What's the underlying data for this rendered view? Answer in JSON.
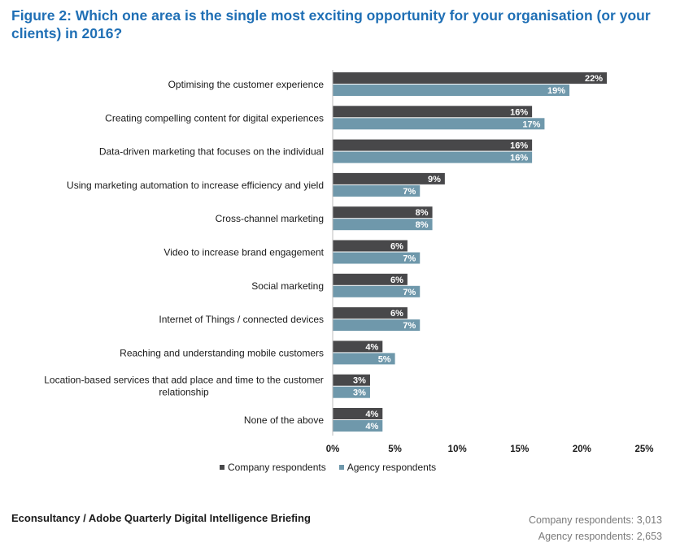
{
  "title": "Figure 2: Which one area is the single most exciting opportunity for your organisation (or your clients) in 2016?",
  "colors": {
    "title": "#1f6fb5",
    "company": "#48484a",
    "agency": "#6f98ab"
  },
  "chart_data": {
    "type": "bar",
    "orientation": "horizontal",
    "categories": [
      "Optimising the customer experience",
      "Creating compelling content for digital experiences",
      "Data-driven marketing that focuses on the individual",
      "Using marketing automation to increase efficiency and yield",
      "Cross-channel marketing",
      "Video to increase brand engagement",
      "Social marketing",
      "Internet of Things / connected devices",
      "Reaching and understanding mobile customers",
      "Location-based services that add place and time to the customer relationship",
      "None of the above"
    ],
    "series": [
      {
        "name": "Company respondents",
        "values": [
          22,
          16,
          16,
          9,
          8,
          6,
          6,
          6,
          4,
          3,
          4
        ]
      },
      {
        "name": "Agency respondents",
        "values": [
          19,
          17,
          16,
          7,
          8,
          7,
          7,
          7,
          5,
          3,
          4
        ]
      }
    ],
    "xlim": [
      0,
      25
    ],
    "xticks": [
      "0%",
      "5%",
      "10%",
      "15%",
      "20%",
      "25%"
    ],
    "legend": "bottom",
    "grid": false
  },
  "legend_items": [
    "Company respondents",
    "Agency respondents"
  ],
  "footer": {
    "source": "Econsultancy / Adobe Quarterly Digital Intelligence Briefing",
    "company_count": "Company respondents: 3,013",
    "agency_count": "Agency respondents: 2,653"
  }
}
